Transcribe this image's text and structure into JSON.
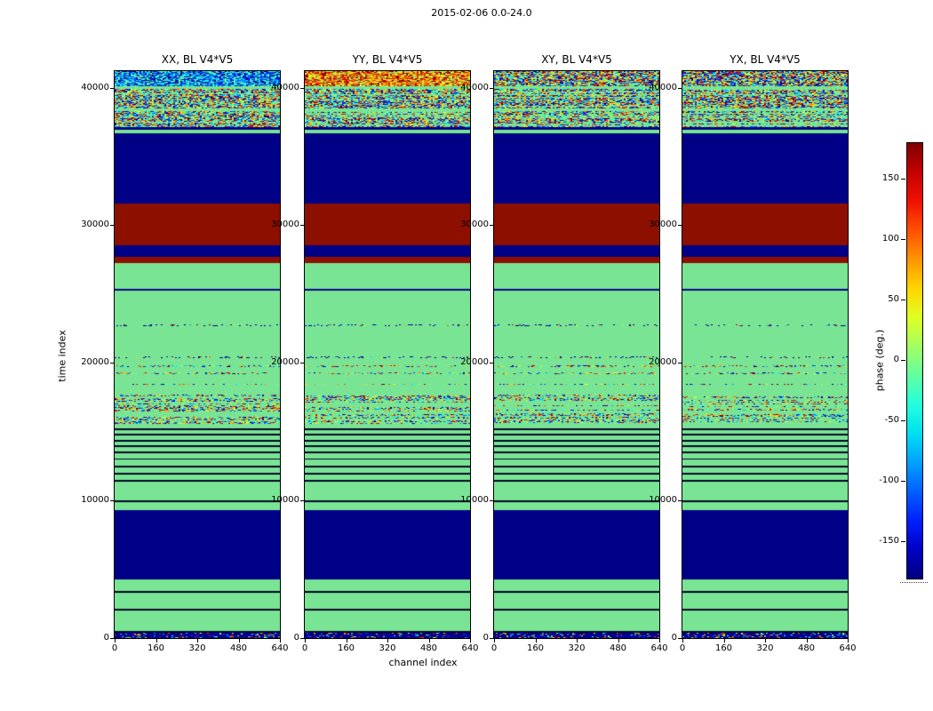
{
  "figure": {
    "suptitle": "2015-02-06 0.0-24.0",
    "xlabel": "channel index",
    "ylabel": "time index",
    "colorbar_label": "phase (deg.)"
  },
  "chart_data": {
    "type": "heatmap",
    "title": "2015-02-06 0.0-24.0",
    "xlabel": "channel index",
    "ylabel": "time index",
    "x_range": [
      0,
      640
    ],
    "y_range": [
      0,
      41200
    ],
    "x_ticks": [
      0,
      160,
      320,
      480,
      640
    ],
    "y_ticks": [
      0,
      10000,
      20000,
      30000,
      40000
    ],
    "panels": [
      {
        "title": "XX, BL V4*V5",
        "top_band_bias": "cool"
      },
      {
        "title": "YY, BL V4*V5",
        "top_band_bias": "warm"
      },
      {
        "title": "XY, BL V4*V5",
        "top_band_bias": "mixed"
      },
      {
        "title": "YX, BL V4*V5",
        "top_band_bias": "mixed"
      }
    ],
    "colorbar": {
      "label": "phase (deg.)",
      "range": [
        -180,
        180
      ],
      "ticks": [
        150,
        100,
        50,
        0,
        -50,
        -100,
        -150
      ],
      "colormap": "jet"
    },
    "colors": {
      "green": "#79e493",
      "navy": "#000087",
      "maroon": "#8d0f00",
      "line": "#00052a"
    },
    "jet_palette": [
      "#000080",
      "#0000c4",
      "#0020ff",
      "#0060ff",
      "#00a0ff",
      "#00e0f0",
      "#23ffdc",
      "#62ffa0",
      "#a2ff62",
      "#e0ff23",
      "#ffd500",
      "#ff9400",
      "#ff5000",
      "#f01000",
      "#c40000",
      "#800000"
    ],
    "bands": [
      {
        "t0": 0,
        "t1": 380,
        "kind": "noise",
        "base": "navy",
        "bias": "dark",
        "rowDensity": 1.0,
        "dotDensity": 0.55
      },
      {
        "t0": 380,
        "t1": 520,
        "kind": "solid",
        "color": "line"
      },
      {
        "t0": 520,
        "t1": 1980,
        "kind": "solid",
        "color": "green"
      },
      {
        "t0": 1980,
        "t1": 2110,
        "kind": "solid",
        "color": "line"
      },
      {
        "t0": 2110,
        "t1": 3280,
        "kind": "solid",
        "color": "green"
      },
      {
        "t0": 3280,
        "t1": 3410,
        "kind": "solid",
        "color": "line"
      },
      {
        "t0": 3410,
        "t1": 4280,
        "kind": "solid",
        "color": "green"
      },
      {
        "t0": 4280,
        "t1": 9330,
        "kind": "solid",
        "color": "navy"
      },
      {
        "t0": 9330,
        "t1": 9860,
        "kind": "solid",
        "color": "green"
      },
      {
        "t0": 9860,
        "t1": 9990,
        "kind": "solid",
        "color": "line"
      },
      {
        "t0": 9990,
        "t1": 11380,
        "kind": "solid",
        "color": "green"
      },
      {
        "t0": 11380,
        "t1": 11500,
        "kind": "solid",
        "color": "line"
      },
      {
        "t0": 11500,
        "t1": 11900,
        "kind": "solid",
        "color": "green"
      },
      {
        "t0": 11900,
        "t1": 12020,
        "kind": "solid",
        "color": "line"
      },
      {
        "t0": 12020,
        "t1": 12430,
        "kind": "solid",
        "color": "green"
      },
      {
        "t0": 12430,
        "t1": 12550,
        "kind": "solid",
        "color": "line"
      },
      {
        "t0": 12550,
        "t1": 12950,
        "kind": "solid",
        "color": "green"
      },
      {
        "t0": 12950,
        "t1": 13070,
        "kind": "solid",
        "color": "line"
      },
      {
        "t0": 13070,
        "t1": 13420,
        "kind": "solid",
        "color": "green"
      },
      {
        "t0": 13420,
        "t1": 13540,
        "kind": "solid",
        "color": "line"
      },
      {
        "t0": 13540,
        "t1": 13870,
        "kind": "solid",
        "color": "green"
      },
      {
        "t0": 13870,
        "t1": 13990,
        "kind": "solid",
        "color": "line"
      },
      {
        "t0": 13990,
        "t1": 14300,
        "kind": "solid",
        "color": "green"
      },
      {
        "t0": 14300,
        "t1": 14420,
        "kind": "solid",
        "color": "line"
      },
      {
        "t0": 14420,
        "t1": 14720,
        "kind": "solid",
        "color": "green"
      },
      {
        "t0": 14720,
        "t1": 14840,
        "kind": "solid",
        "color": "line"
      },
      {
        "t0": 14840,
        "t1": 15130,
        "kind": "solid",
        "color": "green"
      },
      {
        "t0": 15130,
        "t1": 15250,
        "kind": "solid",
        "color": "line"
      },
      {
        "t0": 15250,
        "t1": 15520,
        "kind": "solid",
        "color": "green"
      },
      {
        "t0": 15520,
        "t1": 17680,
        "kind": "noise",
        "base": "green",
        "bias": "mixed",
        "rowDensity": 0.55,
        "dotDensity": 0.55
      },
      {
        "t0": 17680,
        "t1": 18380,
        "kind": "solid",
        "color": "green"
      },
      {
        "t0": 18380,
        "t1": 18500,
        "kind": "noise",
        "base": "green",
        "bias": "mixed",
        "rowDensity": 1,
        "dotDensity": 0.4
      },
      {
        "t0": 18500,
        "t1": 19180,
        "kind": "solid",
        "color": "green"
      },
      {
        "t0": 19180,
        "t1": 19300,
        "kind": "noise",
        "base": "green",
        "bias": "mixed",
        "rowDensity": 1,
        "dotDensity": 0.4
      },
      {
        "t0": 19300,
        "t1": 19720,
        "kind": "solid",
        "color": "green"
      },
      {
        "t0": 19720,
        "t1": 19840,
        "kind": "noise",
        "base": "green",
        "bias": "mixed",
        "rowDensity": 1,
        "dotDensity": 0.4
      },
      {
        "t0": 19840,
        "t1": 20350,
        "kind": "solid",
        "color": "green"
      },
      {
        "t0": 20350,
        "t1": 20470,
        "kind": "noise",
        "base": "green",
        "bias": "dark",
        "rowDensity": 1,
        "dotDensity": 0.25
      },
      {
        "t0": 20470,
        "t1": 22680,
        "kind": "solid",
        "color": "green"
      },
      {
        "t0": 22680,
        "t1": 22800,
        "kind": "noise",
        "base": "green",
        "bias": "dark",
        "rowDensity": 1,
        "dotDensity": 0.22
      },
      {
        "t0": 22800,
        "t1": 25230,
        "kind": "solid",
        "color": "green"
      },
      {
        "t0": 25230,
        "t1": 25400,
        "kind": "solid",
        "color": "navy"
      },
      {
        "t0": 25400,
        "t1": 27230,
        "kind": "solid",
        "color": "green"
      },
      {
        "t0": 27230,
        "t1": 27680,
        "kind": "solid",
        "color": "maroon"
      },
      {
        "t0": 27680,
        "t1": 28520,
        "kind": "solid",
        "color": "navy"
      },
      {
        "t0": 28520,
        "t1": 31560,
        "kind": "solid",
        "color": "maroon"
      },
      {
        "t0": 31560,
        "t1": 36680,
        "kind": "solid",
        "color": "navy"
      },
      {
        "t0": 36680,
        "t1": 36940,
        "kind": "solid",
        "color": "green"
      },
      {
        "t0": 36940,
        "t1": 37160,
        "kind": "solid",
        "color": "navy"
      },
      {
        "t0": 37160,
        "t1": 38300,
        "kind": "noise",
        "base": "green",
        "bias": "mixed",
        "rowDensity": 0.8,
        "dotDensity": 0.75
      },
      {
        "t0": 38300,
        "t1": 38520,
        "kind": "solid",
        "color": "green"
      },
      {
        "t0": 38520,
        "t1": 39920,
        "kind": "noise",
        "base": "green",
        "bias": "mixed",
        "rowDensity": 0.9,
        "dotDensity": 0.8
      },
      {
        "t0": 39920,
        "t1": 40120,
        "kind": "solid",
        "color": "green"
      },
      {
        "t0": 40120,
        "t1": 41200,
        "kind": "noise",
        "base": "green",
        "bias": "panel",
        "rowDensity": 1,
        "dotDensity": 0.92
      }
    ]
  }
}
